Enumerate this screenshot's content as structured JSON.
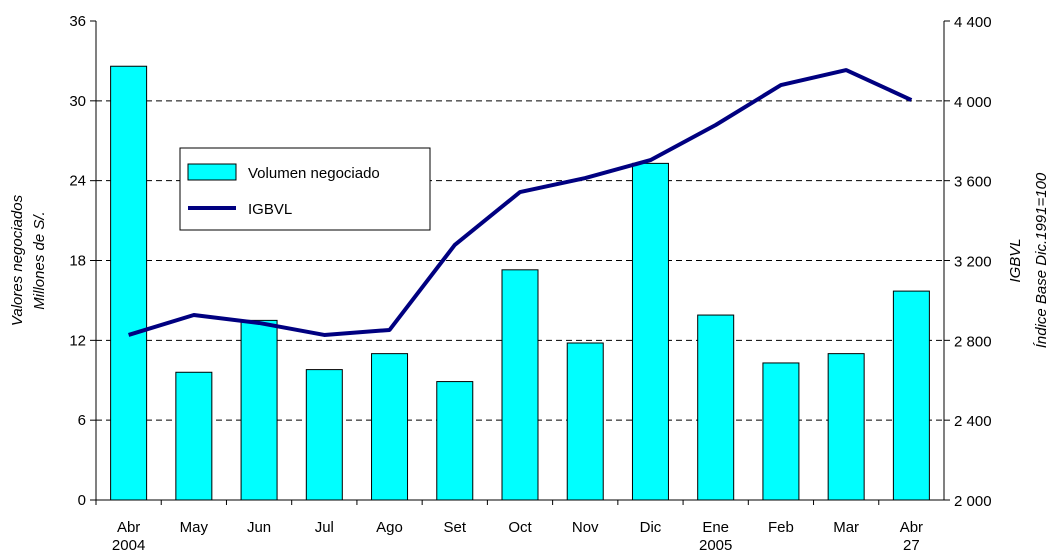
{
  "chart_data": {
    "type": "bar_line",
    "categories": [
      "Abr",
      "May",
      "Jun",
      "Jul",
      "Ago",
      "Set",
      "Oct",
      "Nov",
      "Dic",
      "Ene",
      "Feb",
      "Mar",
      "Abr"
    ],
    "category_sublabels": [
      "2004",
      null,
      null,
      null,
      null,
      null,
      null,
      null,
      null,
      "2005",
      null,
      null,
      "27"
    ],
    "series": [
      {
        "name": "Volumen negociado",
        "type": "bar",
        "color": "#00ffff",
        "axis": "y",
        "values": [
          32.6,
          9.6,
          13.5,
          9.8,
          11.0,
          8.9,
          17.3,
          11.8,
          25.3,
          13.9,
          10.3,
          11.0,
          15.7
        ]
      },
      {
        "name": "IGBVL",
        "type": "line",
        "color": "#000080",
        "axis": "y2",
        "values": [
          2827,
          2927,
          2887,
          2827,
          2852,
          3278,
          3543,
          3613,
          3703,
          3879,
          4079,
          4154,
          4004
        ]
      }
    ],
    "ylabel": [
      "Valores negociados",
      "Millones de S/."
    ],
    "y2label": [
      "IGBVL",
      "Índice Base Dic.1991=100"
    ],
    "ylim": [
      0,
      36
    ],
    "yticks": [
      0,
      6,
      12,
      18,
      24,
      30,
      36
    ],
    "y2lim": [
      2000,
      4400
    ],
    "y2ticks": [
      {
        "value": 2000,
        "label": "2 000"
      },
      {
        "value": 2400,
        "label": "2 400"
      },
      {
        "value": 2800,
        "label": "2 800"
      },
      {
        "value": 3200,
        "label": "3 200"
      },
      {
        "value": 3600,
        "label": "3 600"
      },
      {
        "value": 4000,
        "label": "4 000"
      },
      {
        "value": 4400,
        "label": "4 400"
      }
    ],
    "grid": true
  }
}
